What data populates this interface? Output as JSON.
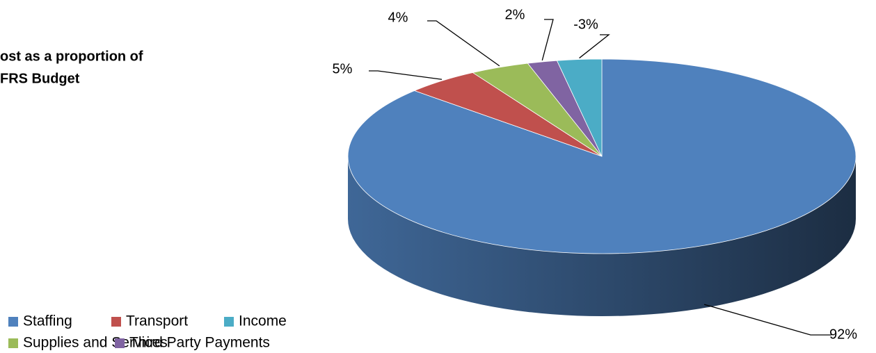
{
  "chart_data": {
    "type": "pie3d",
    "title": [
      "ost as a proportion of",
      "FRS Budget"
    ],
    "categories": [
      "Staffing",
      "Transport",
      "Supplies and Services",
      "Third Party Payments",
      "Income"
    ],
    "values": [
      92,
      5,
      4,
      2,
      -3
    ],
    "value_labels": [
      "92%",
      "5%",
      "4%",
      "2%",
      "-3%"
    ],
    "colors": [
      "#4f81bd",
      "#c0504d",
      "#9bbb59",
      "#8064a2",
      "#4bacc6"
    ],
    "legend": "bottom-left"
  }
}
